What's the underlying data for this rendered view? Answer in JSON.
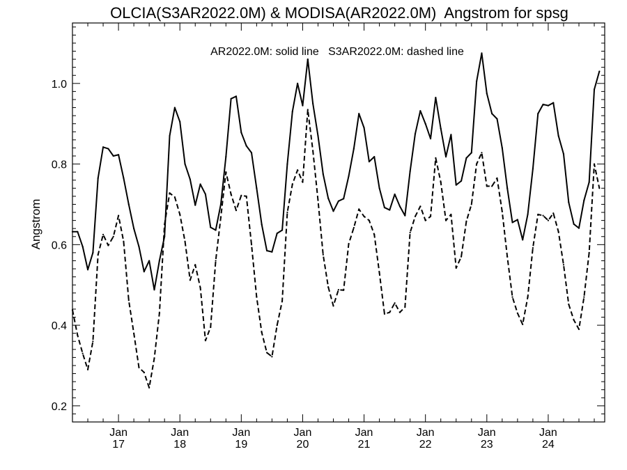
{
  "chart_data": {
    "type": "line",
    "title": "OLCIA(S3AR2022.0M) & MODISA(AR2022.0M)  Angstrom for spsg",
    "legend_text": "AR2022.0M: solid line   S3AR2022.0M: dashed line",
    "ylabel": "Angstrom",
    "xlabel": "",
    "ylim": [
      0.16,
      1.15
    ],
    "xlim": [
      2016.25,
      2024.92
    ],
    "yticks": [
      0.2,
      0.4,
      0.6,
      0.8,
      1.0
    ],
    "ytick_labels": [
      "0.2",
      "0.4",
      "0.6",
      "0.8",
      "1.0"
    ],
    "xticks": [
      {
        "value": 2017.0,
        "month": "Jan",
        "year": "17"
      },
      {
        "value": 2018.0,
        "month": "Jan",
        "year": "18"
      },
      {
        "value": 2019.0,
        "month": "Jan",
        "year": "19"
      },
      {
        "value": 2020.0,
        "month": "Jan",
        "year": "20"
      },
      {
        "value": 2021.0,
        "month": "Jan",
        "year": "21"
      },
      {
        "value": 2022.0,
        "month": "Jan",
        "year": "22"
      },
      {
        "value": 2023.0,
        "month": "Jan",
        "year": "23"
      },
      {
        "value": 2024.0,
        "month": "Jan",
        "year": "24"
      }
    ],
    "x_start": 2016.25,
    "x_step": 0.0833333,
    "series": [
      {
        "name": "AR2022.0M",
        "style": "solid",
        "values": [
          0.632,
          0.632,
          0.595,
          0.538,
          0.58,
          0.765,
          0.842,
          0.838,
          0.82,
          0.823,
          0.765,
          0.7,
          0.64,
          0.595,
          0.533,
          0.56,
          0.488,
          0.56,
          0.62,
          0.87,
          0.94,
          0.905,
          0.8,
          0.762,
          0.698,
          0.75,
          0.725,
          0.643,
          0.636,
          0.7,
          0.818,
          0.962,
          0.968,
          0.878,
          0.845,
          0.828,
          0.74,
          0.65,
          0.585,
          0.582,
          0.628,
          0.636,
          0.8,
          0.93,
          1.0,
          0.945,
          1.06,
          0.95,
          0.87,
          0.775,
          0.715,
          0.683,
          0.708,
          0.714,
          0.77,
          0.838,
          0.925,
          0.89,
          0.806,
          0.818,
          0.74,
          0.692,
          0.686,
          0.725,
          0.695,
          0.672,
          0.782,
          0.875,
          0.932,
          0.9,
          0.863,
          0.965,
          0.888,
          0.818,
          0.873,
          0.748,
          0.758,
          0.815,
          0.828,
          1.005,
          1.075,
          0.975,
          0.925,
          0.912,
          0.84,
          0.74,
          0.655,
          0.662,
          0.612,
          0.675,
          0.788,
          0.925,
          0.948,
          0.945,
          0.952,
          0.87,
          0.825,
          0.705,
          0.651,
          0.641,
          0.71,
          0.755,
          0.985,
          1.03
        ]
      },
      {
        "name": "S3AR2022.0M",
        "style": "dashed",
        "values": [
          0.438,
          0.375,
          0.33,
          0.29,
          0.36,
          0.575,
          0.625,
          0.598,
          0.62,
          0.672,
          0.608,
          0.462,
          0.38,
          0.295,
          0.283,
          0.245,
          0.318,
          0.43,
          0.65,
          0.728,
          0.718,
          0.675,
          0.608,
          0.512,
          0.55,
          0.493,
          0.362,
          0.395,
          0.56,
          0.668,
          0.78,
          0.725,
          0.685,
          0.722,
          0.72,
          0.6,
          0.47,
          0.382,
          0.332,
          0.322,
          0.4,
          0.46,
          0.68,
          0.75,
          0.785,
          0.755,
          0.935,
          0.833,
          0.71,
          0.575,
          0.495,
          0.448,
          0.488,
          0.487,
          0.602,
          0.642,
          0.688,
          0.67,
          0.66,
          0.625,
          0.53,
          0.428,
          0.432,
          0.455,
          0.432,
          0.445,
          0.63,
          0.67,
          0.695,
          0.66,
          0.67,
          0.815,
          0.755,
          0.66,
          0.675,
          0.542,
          0.57,
          0.658,
          0.7,
          0.8,
          0.828,
          0.745,
          0.745,
          0.765,
          0.682,
          0.57,
          0.47,
          0.43,
          0.402,
          0.47,
          0.592,
          0.675,
          0.672,
          0.66,
          0.678,
          0.632,
          0.55,
          0.452,
          0.413,
          0.39,
          0.47,
          0.58,
          0.8,
          0.74
        ]
      }
    ],
    "grid": false,
    "legend_position": "top-center"
  }
}
